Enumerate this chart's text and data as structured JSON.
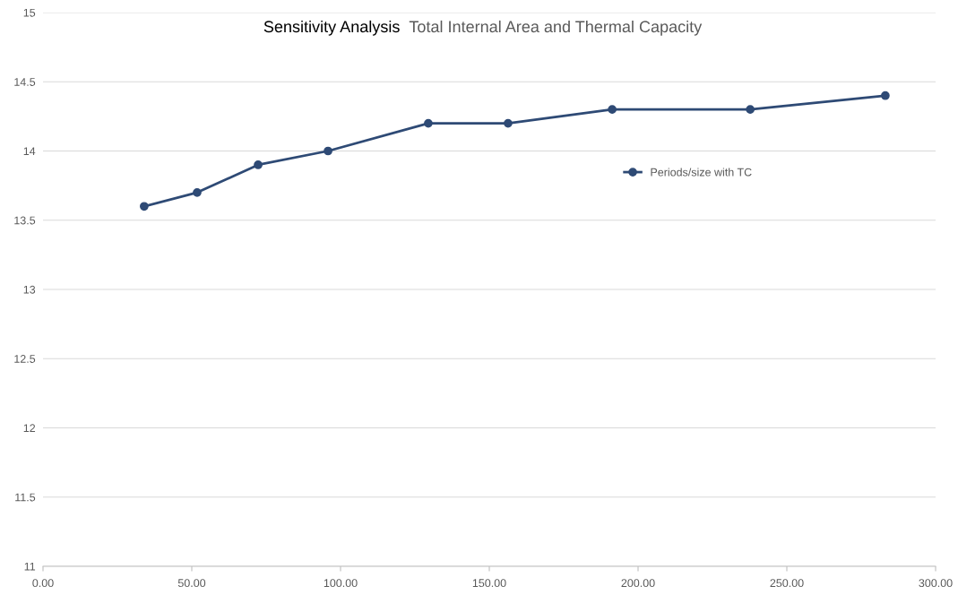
{
  "chart_data": {
    "type": "line",
    "title": "Sensitivity Analysis",
    "subtitle": "Total Internal Area and Thermal Capacity",
    "x": [
      34.0,
      51.8,
      72.3,
      95.8,
      129.5,
      156.3,
      191.3,
      237.7,
      283.1
    ],
    "series": [
      {
        "name": "Periods/size with TC",
        "color": "#2e4a75",
        "values": [
          13.6,
          13.7,
          13.9,
          14.0,
          14.2,
          14.2,
          14.3,
          14.3,
          14.4
        ]
      }
    ],
    "xlim": [
      0,
      300
    ],
    "xticks": [
      {
        "value": 0,
        "label": "0.00"
      },
      {
        "value": 50,
        "label": "50.00"
      },
      {
        "value": 100,
        "label": "100.00"
      },
      {
        "value": 150,
        "label": "150.00"
      },
      {
        "value": 200,
        "label": "200.00"
      },
      {
        "value": 250,
        "label": "250.00"
      },
      {
        "value": 300,
        "label": "300.00"
      }
    ],
    "ylim": [
      11,
      15
    ],
    "yticks": [
      11,
      11.5,
      12,
      12.5,
      13,
      13.5,
      14,
      14.5,
      15
    ],
    "grid": "y",
    "legend": "right",
    "marker": "circle",
    "line_style": "solid"
  }
}
